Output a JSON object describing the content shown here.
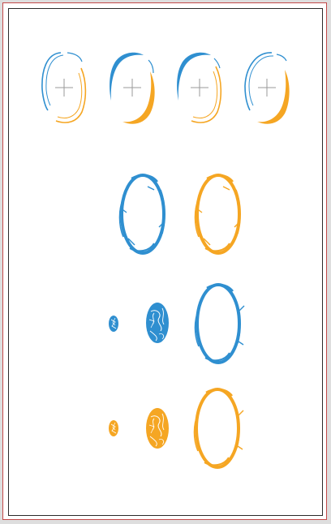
{
  "sheet": {
    "background": "#ffffff",
    "border_outer_color": "#c34a4a",
    "border_inner_color": "#2a2a2a"
  },
  "colors": {
    "blue": "#2f8fd0",
    "orange": "#f5a623",
    "crosshair": "#9a9a9a"
  },
  "crosshair_portals": [
    {
      "name": "portal-crosshair-thin",
      "variant": "thin"
    },
    {
      "name": "portal-crosshair-blue-thick",
      "variant": "blue-thick"
    },
    {
      "name": "portal-crosshair-orange-thick",
      "variant": "orange-thick"
    },
    {
      "name": "portal-crosshair-orange-heavy",
      "variant": "orange-heavy"
    }
  ],
  "portal_rings": [
    {
      "name": "portal-ring-blue",
      "color": "blue"
    },
    {
      "name": "portal-ring-orange",
      "color": "orange"
    }
  ],
  "portal_effects": [
    {
      "name": "blue",
      "color": "blue"
    },
    {
      "name": "orange",
      "color": "orange"
    }
  ]
}
